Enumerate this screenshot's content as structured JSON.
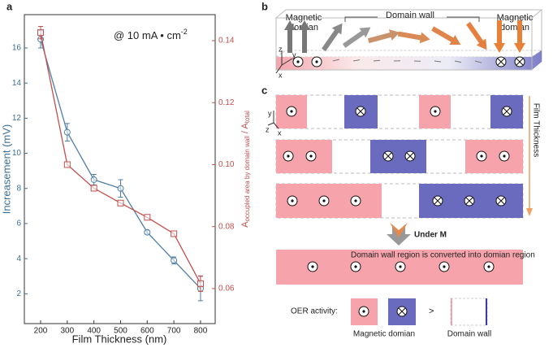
{
  "chart_data": {
    "type": "line",
    "panel": "a",
    "annotation": [
      "@ 10 mA • cm",
      "-2"
    ],
    "x": [
      200,
      300,
      400,
      500,
      600,
      700,
      800
    ],
    "xlim": [
      139,
      855
    ],
    "xticks": [
      200,
      300,
      400,
      500,
      600,
      700,
      800
    ],
    "xlabel": "Film Thickness (nm)",
    "ylabel": "Increasement (mV)",
    "ylim": [
      0.3,
      17.9
    ],
    "yticks": [
      2,
      4,
      6,
      8,
      10,
      12,
      14,
      16
    ],
    "y2label": [
      "A",
      "occupied area by domain wall",
      " / A",
      "total"
    ],
    "y2lim": [
      0.0487,
      0.1484
    ],
    "y2ticks": [
      0.06,
      0.08,
      {
        "value": 0.1,
        "label": "0.10"
      },
      0.12,
      0.14
    ],
    "series": [
      {
        "color": "#4f7ea6",
        "marker": "circle",
        "values": [
          16.5,
          11.2,
          8.5,
          8.0,
          5.5,
          3.9,
          2.3
        ],
        "errors": [
          0.5,
          0.5,
          0.3,
          0.5,
          0.1,
          0.2,
          0.7
        ]
      },
      {
        "color": "#c0504d",
        "marker": "square",
        "axis": "y2",
        "values": [
          0.1426,
          0.1,
          0.0924,
          0.0876,
          0.083,
          0.0777,
          0.0616
        ],
        "errors": [
          0.002,
          null,
          null,
          null,
          null,
          null,
          0.0025
        ]
      }
    ]
  },
  "diagram_b": {
    "panel": "b",
    "left_label": [
      "Magnetic",
      "domian"
    ],
    "wall_label": "Domain wall",
    "right_label": [
      "Magnetic",
      "domian"
    ],
    "axes": [
      "z",
      "y",
      "x"
    ]
  },
  "diagram_c": {
    "panel": "c",
    "axes": [
      "y",
      "z",
      "x"
    ],
    "thickness_label": "Film Thickness",
    "under_label": "Under M",
    "converted_label": "Domain wall region is converted into domian region",
    "oer_label": "OER activity:",
    "compare": ">",
    "domain_label": "Magnetic domian",
    "wall_label": "Domain wall"
  }
}
